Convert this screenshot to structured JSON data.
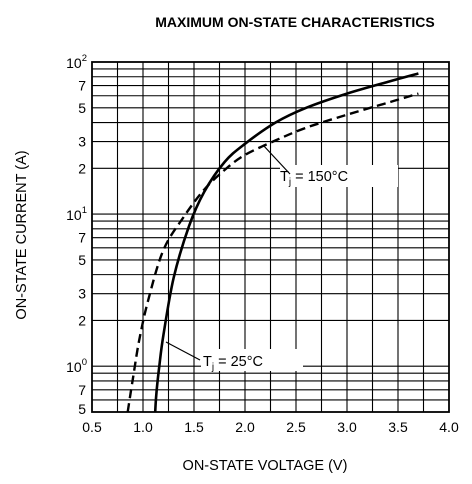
{
  "chart_data": {
    "type": "line",
    "title": "MAXIMUM ON-STATE CHARACTERISTICS",
    "xlabel": "ON-STATE VOLTAGE  (V)",
    "ylabel": "ON-STATE CURRENT  (A)",
    "xlim": [
      0.5,
      4.0
    ],
    "ylim": [
      0.5,
      100
    ],
    "yscale": "log",
    "grid": true,
    "x_ticks": [
      "0.5",
      "1.0",
      "1.5",
      "2.0",
      "2.5",
      "3.0",
      "3.5",
      "4.0"
    ],
    "y_ticks": [
      {
        "value": 0.5,
        "mantissa": "5",
        "exp": ""
      },
      {
        "value": 0.7,
        "mantissa": "7",
        "exp": ""
      },
      {
        "value": 1,
        "mantissa": "10",
        "exp": "0"
      },
      {
        "value": 2,
        "mantissa": "2",
        "exp": ""
      },
      {
        "value": 3,
        "mantissa": "3",
        "exp": ""
      },
      {
        "value": 5,
        "mantissa": "5",
        "exp": ""
      },
      {
        "value": 7,
        "mantissa": "7",
        "exp": ""
      },
      {
        "value": 10,
        "mantissa": "10",
        "exp": "1"
      },
      {
        "value": 20,
        "mantissa": "2",
        "exp": ""
      },
      {
        "value": 30,
        "mantissa": "3",
        "exp": ""
      },
      {
        "value": 50,
        "mantissa": "5",
        "exp": ""
      },
      {
        "value": 70,
        "mantissa": "7",
        "exp": ""
      },
      {
        "value": 100,
        "mantissa": "10",
        "exp": "2"
      }
    ],
    "series": [
      {
        "style": "solid",
        "x": [
          1.12,
          1.13,
          1.16,
          1.2,
          1.3,
          1.45,
          1.6,
          1.8,
          2.0,
          2.3,
          2.6,
          3.0,
          3.4,
          3.7
        ],
        "y": [
          0.5,
          0.65,
          1.0,
          1.6,
          3.8,
          8.3,
          14,
          22,
          29,
          40,
          50,
          62,
          74,
          84
        ]
      },
      {
        "style": "dashed",
        "x": [
          0.85,
          0.9,
          0.96,
          1.05,
          1.2,
          1.4,
          1.6,
          1.8,
          2.0,
          2.3,
          2.6,
          3.0,
          3.4,
          3.7
        ],
        "y": [
          0.5,
          0.82,
          1.45,
          2.7,
          5.8,
          9.6,
          14.5,
          19.5,
          24.5,
          30.5,
          37,
          45,
          54,
          62
        ]
      }
    ],
    "annotations": [
      {
        "base": "T",
        "sub": "j",
        "rest": " = 150°C"
      },
      {
        "base": "T",
        "sub": "j",
        "rest": " = 25°C"
      }
    ]
  }
}
